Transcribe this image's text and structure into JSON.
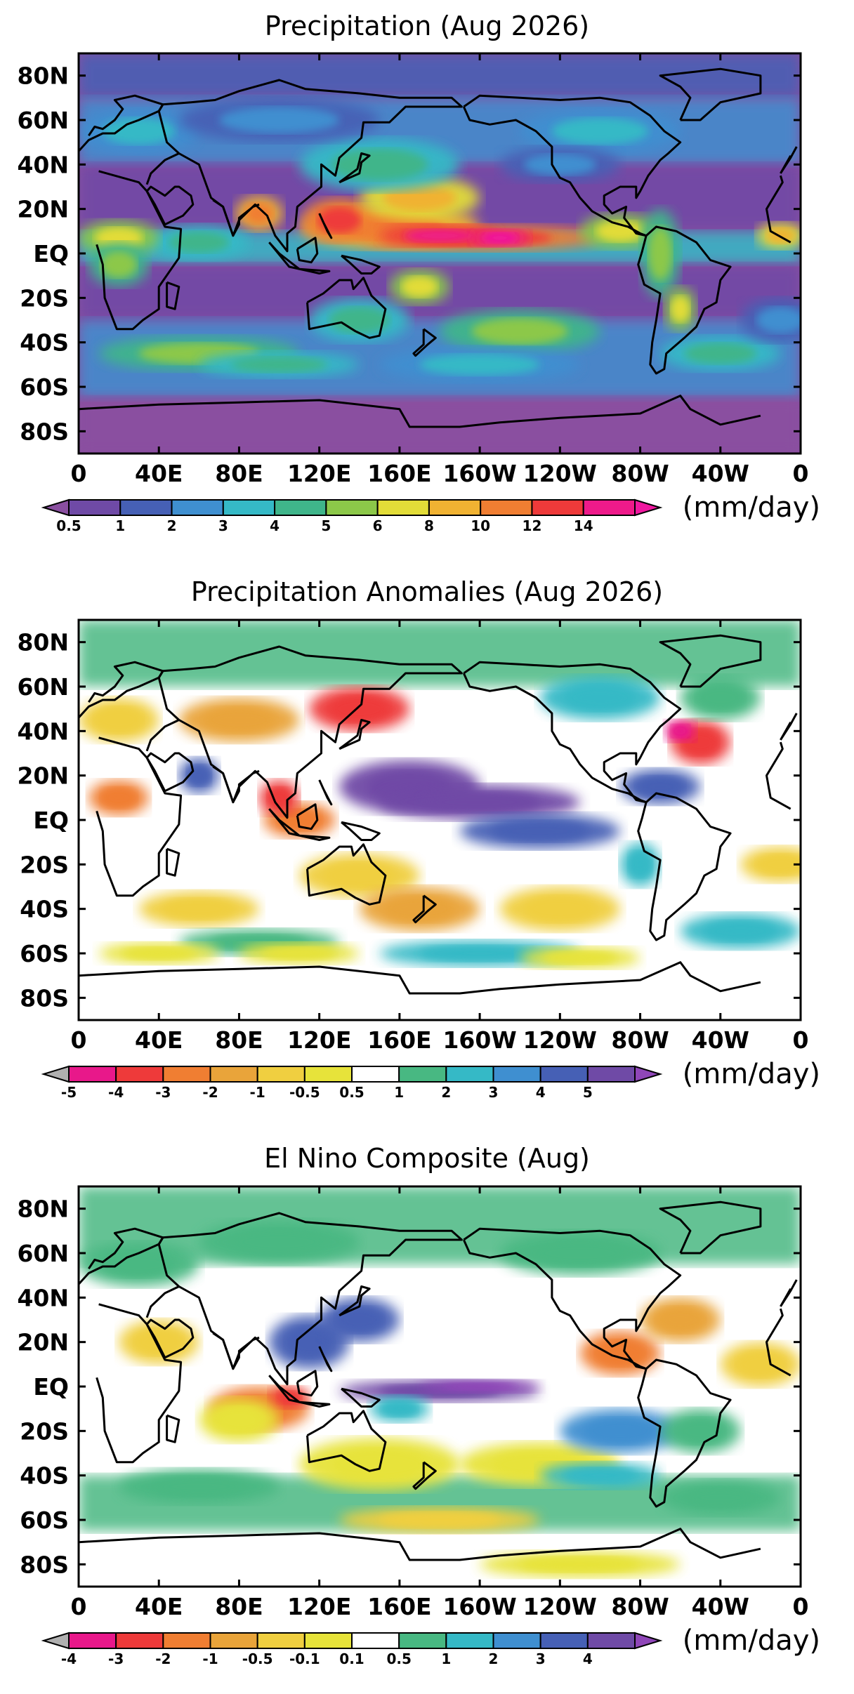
{
  "panels": [
    {
      "title": "Precipitation (Aug 2026)",
      "variable": "precipitation",
      "units": "(mm/day)",
      "colorbar": {
        "labels": [
          "0.5",
          "1",
          "2",
          "3",
          "4",
          "5",
          "6",
          "8",
          "10",
          "12",
          "14"
        ],
        "colors": [
          "#8a4fa0",
          "#6f4aa6",
          "#4660b5",
          "#3f8fd0",
          "#35b9c6",
          "#3fb58a",
          "#8cc849",
          "#e2dc38",
          "#f0b232",
          "#f07e32",
          "#ee3a3a",
          "#ee1a8a",
          "#f018a0"
        ]
      }
    },
    {
      "title": "Precipitation Anomalies (Aug 2026)",
      "variable": "anomaly",
      "units": "(mm/day)",
      "colorbar": {
        "labels": [
          "-5",
          "-4",
          "-3",
          "-2",
          "-1",
          "-0.5",
          "0.5",
          "1",
          "2",
          "3",
          "4",
          "5"
        ],
        "colors": [
          "#b0b0b0",
          "#e8188a",
          "#ee3a3a",
          "#f07e32",
          "#e9a43a",
          "#f0cf40",
          "#e7e33a",
          "#ffffff",
          "#48b882",
          "#35b9c6",
          "#3f8fd0",
          "#4660b5",
          "#6f4aa6",
          "#8f46b8"
        ]
      }
    },
    {
      "title": "El Nino Composite (Aug)",
      "variable": "composite",
      "units": "(mm/day)",
      "colorbar": {
        "labels": [
          "-4",
          "-3",
          "-2",
          "-1",
          "-0.5",
          "-0.1",
          "0.1",
          "0.5",
          "1",
          "2",
          "3",
          "4"
        ],
        "colors": [
          "#b0b0b0",
          "#e8188a",
          "#ee3a3a",
          "#f07e32",
          "#e9a43a",
          "#f0cf40",
          "#e7e33a",
          "#ffffff",
          "#48b882",
          "#35b9c6",
          "#3f8fd0",
          "#4660b5",
          "#6f4aa6",
          "#8f46b8"
        ]
      }
    }
  ],
  "axes": {
    "x_ticks": [
      "0",
      "40E",
      "80E",
      "120E",
      "160E",
      "160W",
      "120W",
      "80W",
      "40W",
      "0"
    ],
    "y_ticks": [
      "80N",
      "60N",
      "40N",
      "20N",
      "EQ",
      "20S",
      "40S",
      "60S",
      "80S"
    ]
  }
}
